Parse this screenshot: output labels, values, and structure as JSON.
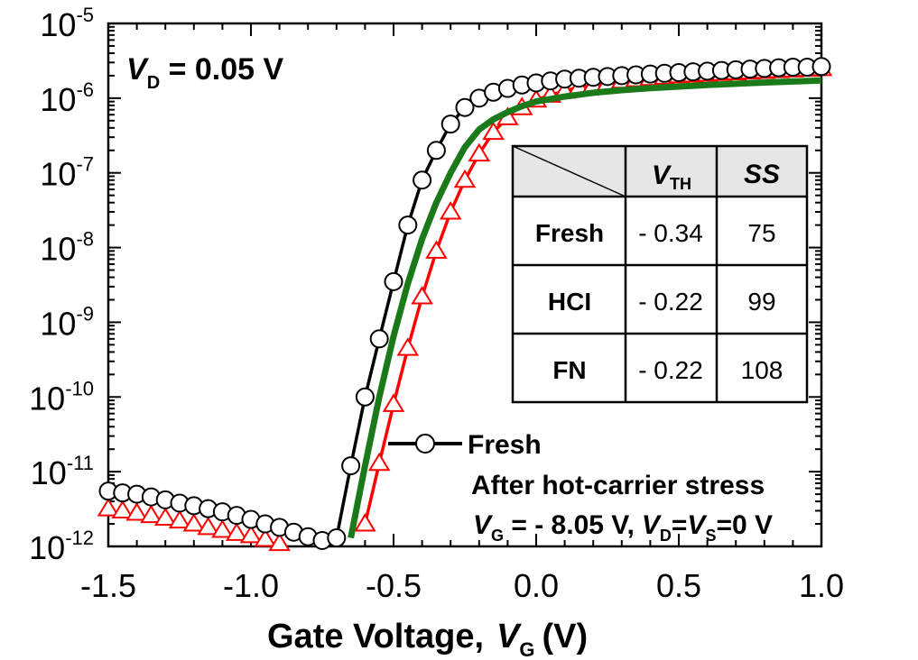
{
  "chart_data": {
    "type": "scatter",
    "title": "",
    "xlabel": "Gate Voltage,",
    "xlabel_var": "V",
    "xlabel_sub": "G",
    "xlabel_unit": "(V)",
    "xlim": [
      -1.5,
      1.0
    ],
    "ylim_log10": [
      -12,
      -5
    ],
    "yscale": "log",
    "x_ticks": [
      "-1.5",
      "-1.0",
      "-0.5",
      "0.0",
      "0.5",
      "1.0"
    ],
    "y_tick_exponents": [
      "-5",
      "-6",
      "-7",
      "-8",
      "-9",
      "-10",
      "-11",
      "-12"
    ],
    "y_tick_base": "10",
    "condition": {
      "var": "V",
      "sub": "D",
      "text": " = 0.05 V"
    },
    "legend": {
      "fresh": "Fresh",
      "stress_line1": "After hot-carrier stress",
      "stress_line2": {
        "v1": "V",
        "s1": "G",
        "t1": " = - 8.05 V,",
        "v2": "V",
        "s2": "D",
        "t2": "=",
        "v3": "V",
        "s3": "S",
        "t3": "=0 V"
      }
    },
    "series": [
      {
        "name": "Fresh",
        "color": "#000000",
        "marker": "circle",
        "points": [
          [
            -1.5,
            5.5e-12
          ],
          [
            -1.45,
            5.2e-12
          ],
          [
            -1.4,
            5e-12
          ],
          [
            -1.35,
            4.6e-12
          ],
          [
            -1.3,
            4.2e-12
          ],
          [
            -1.25,
            3.8e-12
          ],
          [
            -1.2,
            3.5e-12
          ],
          [
            -1.15,
            3.2e-12
          ],
          [
            -1.1,
            2.9e-12
          ],
          [
            -1.05,
            2.6e-12
          ],
          [
            -1.0,
            2.3e-12
          ],
          [
            -0.95,
            2e-12
          ],
          [
            -0.9,
            1.8e-12
          ],
          [
            -0.85,
            1.55e-12
          ],
          [
            -0.8,
            1.35e-12
          ],
          [
            -0.75,
            1.2e-12
          ],
          [
            -0.7,
            1.3e-12
          ],
          [
            -0.65,
            1.2e-11
          ],
          [
            -0.6,
            1e-10
          ],
          [
            -0.55,
            6e-10
          ],
          [
            -0.5,
            3.5e-09
          ],
          [
            -0.45,
            2e-08
          ],
          [
            -0.4,
            8e-08
          ],
          [
            -0.35,
            2e-07
          ],
          [
            -0.3,
            4.5e-07
          ],
          [
            -0.25,
            7.5e-07
          ],
          [
            -0.2,
            1e-06
          ],
          [
            -0.15,
            1.2e-06
          ],
          [
            -0.1,
            1.35e-06
          ],
          [
            -0.05,
            1.5e-06
          ],
          [
            0.0,
            1.6e-06
          ],
          [
            0.05,
            1.7e-06
          ],
          [
            0.1,
            1.8e-06
          ],
          [
            0.15,
            1.85e-06
          ],
          [
            0.2,
            1.9e-06
          ],
          [
            0.25,
            1.95e-06
          ],
          [
            0.3,
            2e-06
          ],
          [
            0.35,
            2.05e-06
          ],
          [
            0.4,
            2.1e-06
          ],
          [
            0.45,
            2.15e-06
          ],
          [
            0.5,
            2.2e-06
          ],
          [
            0.55,
            2.25e-06
          ],
          [
            0.6,
            2.3e-06
          ],
          [
            0.65,
            2.35e-06
          ],
          [
            0.7,
            2.4e-06
          ],
          [
            0.75,
            2.45e-06
          ],
          [
            0.8,
            2.5e-06
          ],
          [
            0.85,
            2.55e-06
          ],
          [
            0.9,
            2.6e-06
          ],
          [
            0.95,
            2.6e-06
          ],
          [
            1.0,
            2.65e-06
          ]
        ]
      },
      {
        "name": "HCI",
        "color": "#ff0000",
        "marker": "triangle",
        "points": [
          [
            -1.5,
            3.2e-12
          ],
          [
            -1.45,
            3e-12
          ],
          [
            -1.4,
            2.8e-12
          ],
          [
            -1.35,
            2.6e-12
          ],
          [
            -1.3,
            2.4e-12
          ],
          [
            -1.25,
            2.2e-12
          ],
          [
            -1.2,
            2e-12
          ],
          [
            -1.15,
            1.8e-12
          ],
          [
            -1.1,
            1.65e-12
          ],
          [
            -1.05,
            1.5e-12
          ],
          [
            -1.0,
            1.4e-12
          ],
          [
            -0.95,
            1.25e-12
          ],
          [
            -0.9,
            1.1e-12
          ],
          [
            -0.6,
            2e-12
          ],
          [
            -0.55,
            1.3e-11
          ],
          [
            -0.5,
            8e-11
          ],
          [
            -0.45,
            4.5e-10
          ],
          [
            -0.4,
            2.2e-09
          ],
          [
            -0.35,
            9e-09
          ],
          [
            -0.3,
            3e-08
          ],
          [
            -0.25,
            8e-08
          ],
          [
            -0.2,
            1.8e-07
          ],
          [
            -0.15,
            3.5e-07
          ],
          [
            -0.1,
            5.5e-07
          ],
          [
            -0.05,
            7.5e-07
          ],
          [
            0.0,
            9.5e-07
          ],
          [
            0.05,
            1.1e-06
          ],
          [
            0.1,
            1.25e-06
          ],
          [
            0.15,
            1.4e-06
          ],
          [
            0.2,
            1.5e-06
          ],
          [
            0.25,
            1.6e-06
          ],
          [
            0.3,
            1.7e-06
          ],
          [
            0.35,
            1.78e-06
          ],
          [
            0.4,
            1.85e-06
          ],
          [
            0.45,
            1.92e-06
          ],
          [
            0.5,
            2e-06
          ],
          [
            0.55,
            2.05e-06
          ],
          [
            0.6,
            2.1e-06
          ],
          [
            0.65,
            2.15e-06
          ],
          [
            0.7,
            2.2e-06
          ],
          [
            0.75,
            2.25e-06
          ],
          [
            0.8,
            2.3e-06
          ],
          [
            0.85,
            2.35e-06
          ],
          [
            0.9,
            2.4e-06
          ],
          [
            0.95,
            2.45e-06
          ],
          [
            1.0,
            2.5e-06
          ]
        ]
      },
      {
        "name": "FN",
        "color": "#1a7a1a",
        "marker": "line",
        "points": [
          [
            -0.65,
            1.3e-12
          ],
          [
            -0.6,
            1.2e-11
          ],
          [
            -0.55,
            1e-10
          ],
          [
            -0.5,
            6.5e-10
          ],
          [
            -0.45,
            3.3e-09
          ],
          [
            -0.4,
            1.3e-08
          ],
          [
            -0.35,
            4e-08
          ],
          [
            -0.3,
            1e-07
          ],
          [
            -0.25,
            2.2e-07
          ],
          [
            -0.2,
            3.8e-07
          ],
          [
            -0.15,
            5.2e-07
          ],
          [
            -0.1,
            6.5e-07
          ],
          [
            -0.05,
            7.8e-07
          ],
          [
            0.0,
            9e-07
          ],
          [
            0.1,
            1.05e-06
          ],
          [
            0.2,
            1.18e-06
          ],
          [
            0.3,
            1.28e-06
          ],
          [
            0.4,
            1.36e-06
          ],
          [
            0.5,
            1.43e-06
          ],
          [
            0.6,
            1.5e-06
          ],
          [
            0.7,
            1.56e-06
          ],
          [
            0.8,
            1.62e-06
          ],
          [
            0.9,
            1.67e-06
          ],
          [
            1.0,
            1.72e-06
          ]
        ]
      }
    ],
    "table": {
      "col_headers": [
        {
          "var": "V",
          "sub": "TH"
        },
        {
          "var": "SS",
          "sub": ""
        }
      ],
      "rows": [
        {
          "label": "Fresh",
          "vth": "- 0.34",
          "ss": "75"
        },
        {
          "label": "HCI",
          "vth": "- 0.22",
          "ss": "99"
        },
        {
          "label": "FN",
          "vth": "- 0.22",
          "ss": "108"
        }
      ]
    }
  }
}
